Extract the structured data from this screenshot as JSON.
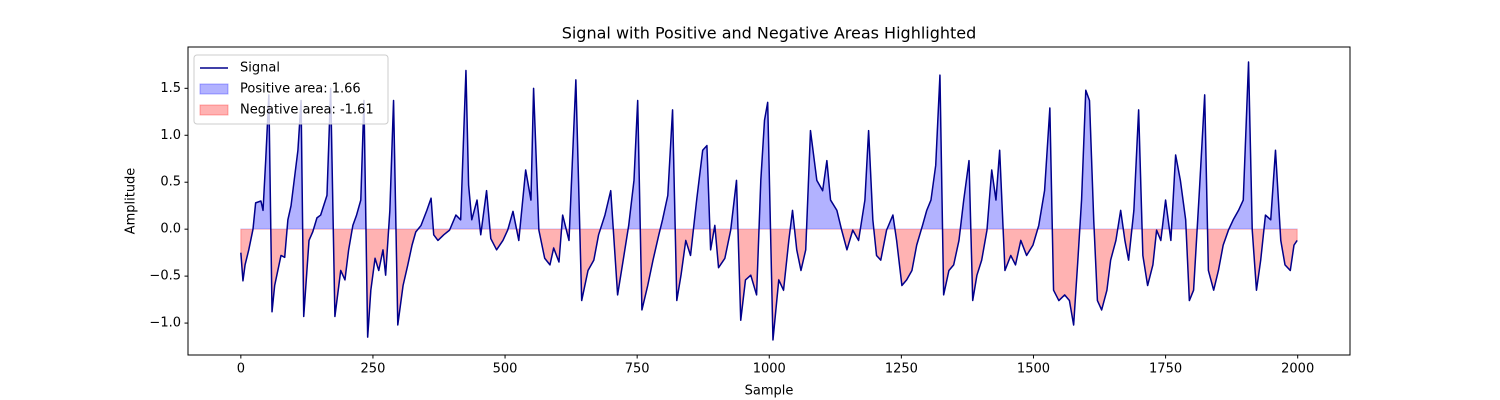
{
  "chart_data": {
    "type": "line",
    "title": "Signal with Positive and Negative Areas Highlighted",
    "x_label": "Sample",
    "y_label": "Amplitude",
    "xlim": [
      -100,
      2099
    ],
    "ylim": [
      -1.34,
      1.94
    ],
    "xticks": [
      0,
      250,
      500,
      750,
      1000,
      1250,
      1500,
      1750,
      2000
    ],
    "yticks": [
      {
        "value": -1.0,
        "label": "−1.0"
      },
      {
        "value": -0.5,
        "label": "−0.5"
      },
      {
        "value": 0.0,
        "label": "0.0"
      },
      0.5,
      {
        "value": 1.0,
        "label": "1.0"
      },
      1.5
    ],
    "legend": "upper left",
    "series": [
      {
        "name": "Signal",
        "color": "#00008b",
        "x": [
          0,
          4,
          8,
          15,
          23,
          28,
          38,
          42,
          47,
          53,
          59,
          64,
          76,
          83,
          89,
          95,
          108,
          114,
          119,
          129,
          136,
          144,
          151,
          163,
          170,
          178,
          189,
          197,
          204,
          212,
          219,
          227,
          233,
          240,
          246,
          254,
          261,
          269,
          274,
          282,
          289,
          297,
          307,
          316,
          324,
          331,
          341,
          352,
          360,
          365,
          373,
          384,
          395,
          407,
          416,
          426,
          431,
          437,
          447,
          454,
          465,
          473,
          484,
          496,
          505,
          515,
          526,
          539,
          549,
          554,
          564,
          575,
          585,
          592,
          602,
          609,
          621,
          634,
          645,
          657,
          668,
          677,
          689,
          700,
          713,
          723,
          734,
          744,
          751,
          759,
          770,
          780,
          791,
          798,
          808,
          817,
          825,
          833,
          842,
          851,
          863,
          874,
          882,
          889,
          897,
          904,
          916,
          927,
          938,
          946,
          955,
          965,
          976,
          984,
          991,
          997,
          1007,
          1018,
          1027,
          1037,
          1044,
          1052,
          1060,
          1069,
          1078,
          1090,
          1101,
          1109,
          1116,
          1128,
          1137,
          1147,
          1158,
          1169,
          1181,
          1188,
          1196,
          1203,
          1211,
          1222,
          1234,
          1241,
          1251,
          1260,
          1270,
          1279,
          1290,
          1298,
          1306,
          1315,
          1323,
          1330,
          1340,
          1349,
          1359,
          1368,
          1378,
          1385,
          1393,
          1402,
          1412,
          1421,
          1429,
          1436,
          1446,
          1457,
          1466,
          1476,
          1487,
          1499,
          1510,
          1521,
          1531,
          1538,
          1548,
          1559,
          1568,
          1576,
          1584,
          1591,
          1599,
          1606,
          1614,
          1621,
          1629,
          1639,
          1646,
          1656,
          1665,
          1673,
          1680,
          1690,
          1699,
          1707,
          1716,
          1726,
          1733,
          1741,
          1750,
          1760,
          1769,
          1778,
          1788,
          1795,
          1803,
          1814,
          1824,
          1831,
          1841,
          1850,
          1859,
          1869,
          1878,
          1888,
          1897,
          1907,
          1914,
          1922,
          1930,
          1939,
          1949,
          1958,
          1968,
          1976,
          1986,
          1993,
          1999
        ],
        "values": [
          -0.25,
          -0.55,
          -0.38,
          -0.22,
          0.0,
          0.28,
          0.3,
          0.2,
          0.73,
          1.43,
          -0.88,
          -0.6,
          -0.28,
          -0.3,
          0.1,
          0.25,
          0.84,
          1.37,
          -0.93,
          -0.12,
          -0.03,
          0.12,
          0.15,
          0.36,
          1.5,
          -0.93,
          -0.44,
          -0.54,
          -0.22,
          0.04,
          0.15,
          0.31,
          1.37,
          -1.15,
          -0.65,
          -0.31,
          -0.44,
          -0.22,
          -0.49,
          0.2,
          1.37,
          -1.02,
          -0.6,
          -0.38,
          -0.17,
          -0.03,
          0.04,
          0.2,
          0.33,
          -0.06,
          -0.12,
          -0.06,
          -0.01,
          0.15,
          0.1,
          1.69,
          0.47,
          0.1,
          0.31,
          -0.06,
          0.41,
          -0.1,
          -0.22,
          -0.12,
          -0.01,
          0.19,
          -0.12,
          0.63,
          0.31,
          1.5,
          -0.01,
          -0.31,
          -0.38,
          -0.2,
          -0.35,
          0.15,
          -0.12,
          1.59,
          -0.76,
          -0.44,
          -0.33,
          -0.06,
          0.15,
          0.41,
          -0.7,
          -0.35,
          0.04,
          0.52,
          1.37,
          -0.86,
          -0.6,
          -0.33,
          -0.06,
          0.1,
          0.36,
          1.27,
          -0.76,
          -0.49,
          -0.12,
          -0.28,
          0.33,
          0.84,
          0.89,
          -0.22,
          0.04,
          -0.41,
          -0.31,
          -0.01,
          0.52,
          -0.97,
          -0.54,
          -0.49,
          -0.7,
          0.52,
          1.16,
          1.35,
          -1.18,
          -0.54,
          -0.65,
          -0.12,
          0.2,
          -0.22,
          -0.44,
          -0.22,
          1.05,
          0.52,
          0.41,
          0.73,
          0.31,
          0.2,
          -0.01,
          -0.22,
          -0.01,
          -0.12,
          0.31,
          1.05,
          0.1,
          -0.28,
          -0.33,
          -0.01,
          0.15,
          -0.12,
          -0.6,
          -0.54,
          -0.44,
          -0.17,
          0.04,
          0.2,
          0.31,
          0.68,
          1.64,
          -0.7,
          -0.44,
          -0.38,
          -0.12,
          0.31,
          0.73,
          -0.76,
          -0.49,
          -0.33,
          -0.01,
          0.63,
          0.31,
          0.84,
          -0.44,
          -0.28,
          -0.38,
          -0.12,
          -0.28,
          -0.17,
          0.04,
          0.41,
          1.29,
          -0.65,
          -0.76,
          -0.7,
          -0.76,
          -1.02,
          -0.33,
          0.31,
          1.48,
          1.37,
          0.1,
          -0.76,
          -0.86,
          -0.65,
          -0.33,
          -0.12,
          0.2,
          -0.12,
          -0.33,
          0.2,
          1.27,
          -0.28,
          -0.6,
          -0.38,
          -0.01,
          -0.12,
          0.31,
          -0.12,
          0.79,
          0.52,
          0.1,
          -0.76,
          -0.65,
          0.41,
          1.43,
          -0.44,
          -0.65,
          -0.44,
          -0.17,
          -0.01,
          0.1,
          0.2,
          0.31,
          1.78,
          -0.01,
          -0.65,
          -0.33,
          0.15,
          0.1,
          0.84,
          -0.12,
          -0.38,
          -0.44,
          -0.17,
          -0.12
        ]
      }
    ],
    "areas": [
      {
        "label": "Positive area: 1.66",
        "color": "#0000ff",
        "alpha": 0.3,
        "side": "above"
      },
      {
        "label": "Negative area: -1.61",
        "color": "#ff0000",
        "alpha": 0.3,
        "side": "below"
      }
    ]
  }
}
